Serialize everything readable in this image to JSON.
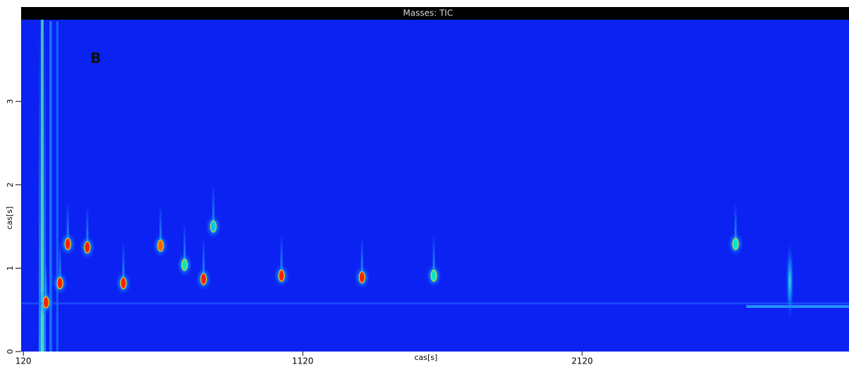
{
  "chart_data": {
    "type": "gcxgc",
    "title": "Masses: TIC",
    "annotation": "B",
    "x_label": "cas[s]",
    "y_label": "cas[s]",
    "xlim": [
      112,
      3075
    ],
    "xticks": [
      120,
      1120,
      2120
    ],
    "ylim": [
      0,
      3.98
    ],
    "yticks": [
      0,
      1,
      2,
      3
    ],
    "background": "#0b22f2",
    "peaks": {
      "x": [
        201,
        251,
        279,
        349,
        478,
        611,
        697,
        765,
        800,
        1044,
        1332,
        1589,
        2669
      ],
      "y": [
        0.59,
        0.82,
        1.29,
        1.25,
        0.82,
        1.27,
        1.04,
        0.87,
        1.5,
        0.91,
        0.89,
        0.91,
        1.29
      ],
      "colors": [
        "#ff2000",
        "#ff2000",
        "#ff2000",
        "#ff2000",
        "#ff2000",
        "#ff6000",
        "#00e8c8",
        "#ff2000",
        "#00c8e8",
        "#ff2000",
        "#ff2000",
        "#00e8c8",
        "#00e8c8"
      ]
    }
  }
}
